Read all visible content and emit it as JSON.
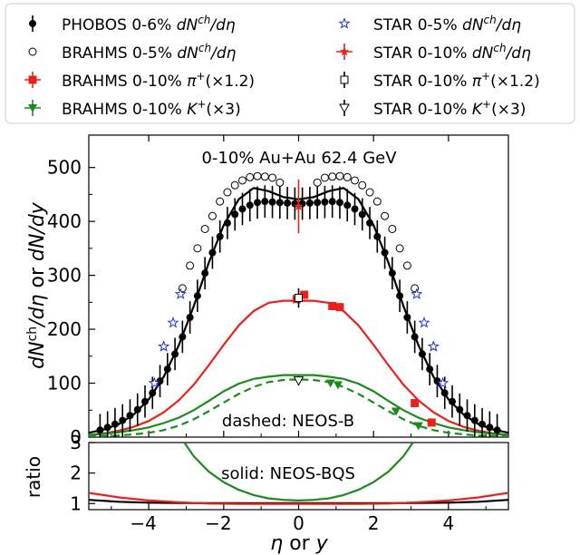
{
  "chart_data": [
    {
      "type": "scatter",
      "panel": "main",
      "annotation_top": "0-10% Au+Au 62.4 GeV",
      "annotation_bottom": "dashed: NEOS-B",
      "ylabel": "dN^{ch}/dη or dN/dy",
      "xlim": [
        -5.6,
        5.6
      ],
      "ylim": [
        0,
        560
      ],
      "yticks": [
        0,
        100,
        200,
        300,
        400,
        500
      ],
      "xticks": [
        -4,
        -2,
        0,
        2,
        4
      ],
      "legend_placement": "top, outside plot, two columns",
      "legend": [
        {
          "id": "phobos",
          "label": "PHOBOS 0-6% dN^{ch}/dη",
          "marker": "filled-circle",
          "color": "#000000"
        },
        {
          "id": "brahms_nch",
          "label": "BRAHMS 0-5% dN^{ch}/dη",
          "marker": "open-circle",
          "color": "#000000"
        },
        {
          "id": "brahms_pi",
          "label": "BRAHMS 0-10% π^{+}(×1.2)",
          "marker": "filled-square",
          "color": "#e8211b"
        },
        {
          "id": "brahms_k",
          "label": "BRAHMS 0-10% K^{+}(×3)",
          "marker": "filled-triangle-down",
          "color": "#1d8a1d"
        },
        {
          "id": "star_nch5",
          "label": "STAR 0-5% dN^{ch}/dη",
          "marker": "open-star",
          "color": "#1f2fd0"
        },
        {
          "id": "star_nch10",
          "label": "STAR 0-10% dN^{ch}/dη",
          "marker": "filled-star",
          "color": "#e8211b"
        },
        {
          "id": "star_pi",
          "label": "STAR 0-10% π^{+}(×1.2)",
          "marker": "open-square",
          "color": "#000000"
        },
        {
          "id": "star_k",
          "label": "STAR 0-10% K^{+}(×3)",
          "marker": "open-triangle-down",
          "color": "#000000"
        }
      ],
      "series": [
        {
          "id": "phobos",
          "color": "#000000",
          "err": 30,
          "x": [
            -5.3,
            -5.1,
            -4.9,
            -4.7,
            -4.5,
            -4.3,
            -4.1,
            -3.9,
            -3.7,
            -3.5,
            -3.3,
            -3.1,
            -2.9,
            -2.7,
            -2.5,
            -2.3,
            -2.1,
            -1.9,
            -1.7,
            -1.5,
            -1.3,
            -1.1,
            -0.9,
            -0.7,
            -0.5,
            -0.3,
            -0.1,
            0.1,
            0.3,
            0.5,
            0.7,
            0.9,
            1.1,
            1.3,
            1.5,
            1.7,
            1.9,
            2.1,
            2.3,
            2.5,
            2.7,
            2.9,
            3.1,
            3.3,
            3.5,
            3.7,
            3.9,
            4.1,
            4.3,
            4.5,
            4.7,
            4.9,
            5.1,
            5.3
          ],
          "y": [
            13,
            18,
            24,
            31,
            40,
            51,
            66,
            82,
            104,
            126,
            154,
            186,
            222,
            262,
            304,
            342,
            372,
            397,
            413,
            423,
            430,
            435,
            437,
            436,
            435,
            434,
            433,
            433,
            434,
            435,
            436,
            437,
            435,
            430,
            423,
            413,
            397,
            372,
            342,
            304,
            262,
            222,
            186,
            154,
            126,
            104,
            82,
            66,
            51,
            40,
            31,
            24,
            18,
            13
          ]
        },
        {
          "id": "brahms_nch",
          "color": "#000000",
          "x": [
            -3.1,
            -2.9,
            -2.7,
            -2.5,
            -2.3,
            -2.1,
            -1.9,
            -1.7,
            -1.5,
            -1.3,
            -1.1,
            -0.9,
            -0.7,
            -0.5,
            0.5,
            0.7,
            0.9,
            1.1,
            1.3,
            1.5,
            1.7,
            1.9,
            2.1,
            2.3,
            2.5,
            2.7,
            2.9,
            3.1
          ],
          "y": [
            276,
            318,
            350,
            386,
            410,
            437,
            454,
            467,
            476,
            482,
            484,
            483,
            481,
            472,
            472,
            481,
            483,
            484,
            482,
            476,
            467,
            454,
            437,
            410,
            386,
            350,
            318,
            276
          ]
        },
        {
          "id": "star_nch5",
          "color": "#1f2fd0",
          "x": [
            -3.85,
            -3.6,
            -3.35,
            -3.15,
            3.15,
            3.35,
            3.6,
            3.85
          ],
          "y": [
            100,
            168,
            212,
            265,
            265,
            212,
            168,
            100
          ]
        },
        {
          "id": "star_nch10",
          "color": "#e8211b",
          "x": [
            0
          ],
          "y": [
            428
          ],
          "err": [
            50
          ]
        },
        {
          "id": "brahms_pi",
          "color": "#e8211b",
          "x": [
            -0.05,
            0.15,
            0.9,
            1.1,
            3.1,
            3.55
          ],
          "y": [
            256,
            264,
            243,
            241,
            63,
            27
          ]
        },
        {
          "id": "star_pi",
          "color": "#000000",
          "x": [
            0
          ],
          "y": [
            258
          ],
          "err": [
            18
          ]
        },
        {
          "id": "brahms_k",
          "color": "#1d8a1d",
          "x": [
            0,
            0.85,
            1.05,
            2.6,
            3.2
          ],
          "y": [
            105,
            100,
            97,
            48,
            21
          ]
        },
        {
          "id": "star_k",
          "color": "#000000",
          "x": [
            0
          ],
          "y": [
            105
          ],
          "err": [
            8
          ]
        }
      ],
      "curves": [
        {
          "id": "neos_bqs_nch",
          "style": "solid",
          "color": "#000000",
          "x": [
            -5.6,
            -5.2,
            -4.8,
            -4.4,
            -4.0,
            -3.6,
            -3.2,
            -2.8,
            -2.4,
            -2.0,
            -1.6,
            -1.2,
            -0.8,
            -0.4,
            0,
            0.4,
            0.8,
            1.2,
            1.6,
            2.0,
            2.4,
            2.8,
            3.2,
            3.6,
            4.0,
            4.4,
            4.8,
            5.2,
            5.6
          ],
          "y": [
            8,
            14,
            24,
            42,
            70,
            112,
            170,
            243,
            323,
            393,
            441,
            462,
            456,
            445,
            441,
            445,
            456,
            462,
            441,
            393,
            323,
            243,
            170,
            112,
            70,
            42,
            24,
            14,
            8
          ]
        },
        {
          "id": "neos_bqs_pi",
          "style": "solid",
          "color": "#e8211b",
          "x": [
            -5.6,
            -5.2,
            -4.8,
            -4.4,
            -4.0,
            -3.6,
            -3.2,
            -2.8,
            -2.4,
            -2.0,
            -1.6,
            -1.2,
            -0.8,
            -0.4,
            0,
            0.4,
            0.8,
            1.2,
            1.6,
            2.0,
            2.4,
            2.8,
            3.2,
            3.6,
            4.0,
            4.4,
            4.8,
            5.2,
            5.6
          ],
          "y": [
            4,
            7,
            12,
            19,
            30,
            46,
            68,
            97,
            133,
            171,
            207,
            234,
            249,
            253,
            253,
            253,
            249,
            234,
            207,
            171,
            133,
            97,
            68,
            46,
            30,
            19,
            12,
            7,
            4
          ]
        },
        {
          "id": "neos_bqs_k",
          "style": "solid",
          "color": "#1d8a1d",
          "x": [
            -5.6,
            -5.2,
            -4.8,
            -4.4,
            -4.0,
            -3.6,
            -3.2,
            -2.8,
            -2.4,
            -2.0,
            -1.6,
            -1.2,
            -0.8,
            -0.4,
            0,
            0.4,
            0.8,
            1.2,
            1.6,
            2.0,
            2.4,
            2.8,
            3.2,
            3.6,
            4.0,
            4.4,
            4.8,
            5.2,
            5.6
          ],
          "y": [
            4,
            6,
            9,
            13,
            18,
            26,
            36,
            50,
            67,
            85,
            99,
            108,
            112,
            115,
            115,
            115,
            112,
            108,
            99,
            85,
            67,
            50,
            36,
            26,
            18,
            13,
            9,
            6,
            4
          ]
        },
        {
          "id": "neos_b_k",
          "style": "dashed",
          "color": "#1d8a1d",
          "x": [
            -5.6,
            -5.2,
            -4.8,
            -4.4,
            -4.0,
            -3.6,
            -3.2,
            -2.8,
            -2.4,
            -2.0,
            -1.6,
            -1.2,
            -0.8,
            -0.4,
            0,
            0.4,
            0.8,
            1.2,
            1.6,
            2.0,
            2.4,
            2.8,
            3.2,
            3.6,
            4.0,
            4.4,
            4.8,
            5.2,
            5.6
          ],
          "y": [
            1,
            2,
            3,
            5,
            8,
            13,
            21,
            33,
            48,
            64,
            80,
            93,
            102,
            106,
            107,
            106,
            102,
            93,
            80,
            64,
            48,
            33,
            21,
            13,
            8,
            5,
            3,
            2,
            1
          ]
        }
      ]
    },
    {
      "type": "line",
      "panel": "ratio",
      "annotation": "solid: NEOS-BQS",
      "xlabel": "η or y",
      "ylabel": "ratio",
      "xlim": [
        -5.6,
        5.6
      ],
      "ylim": [
        0.8,
        3.0
      ],
      "yticks": [
        1,
        2,
        3
      ],
      "xticks": [
        -4,
        -2,
        0,
        2,
        4
      ],
      "series": [
        {
          "id": "ratio_nch",
          "color": "#000000",
          "x": [
            -5.6,
            -4.8,
            -4.0,
            -3.2,
            -2.4,
            -1.6,
            -0.8,
            0,
            0.8,
            1.6,
            2.4,
            3.2,
            4.0,
            4.8,
            5.6
          ],
          "y": [
            1.12,
            1.06,
            1.03,
            1.02,
            1.01,
            1.01,
            1.01,
            1.01,
            1.01,
            1.01,
            1.01,
            1.02,
            1.03,
            1.06,
            1.12
          ]
        },
        {
          "id": "ratio_pi",
          "color": "#e8211b",
          "x": [
            -5.6,
            -4.8,
            -4.0,
            -3.2,
            -2.4,
            -1.6,
            -0.8,
            0,
            0.8,
            1.6,
            2.4,
            3.2,
            4.0,
            4.8,
            5.6
          ],
          "y": [
            1.35,
            1.2,
            1.1,
            1.04,
            1.0,
            0.99,
            0.99,
            0.99,
            0.99,
            0.99,
            1.0,
            1.04,
            1.1,
            1.2,
            1.35
          ]
        },
        {
          "id": "ratio_k",
          "color": "#1d8a1d",
          "x": [
            -3.05,
            -2.8,
            -2.4,
            -2.0,
            -1.6,
            -1.2,
            -0.8,
            -0.4,
            0,
            0.4,
            0.8,
            1.2,
            1.6,
            2.0,
            2.4,
            2.8,
            3.05
          ],
          "y": [
            3.0,
            2.55,
            2.05,
            1.7,
            1.45,
            1.28,
            1.17,
            1.12,
            1.1,
            1.12,
            1.17,
            1.28,
            1.45,
            1.7,
            2.05,
            2.55,
            3.0
          ]
        }
      ]
    }
  ]
}
